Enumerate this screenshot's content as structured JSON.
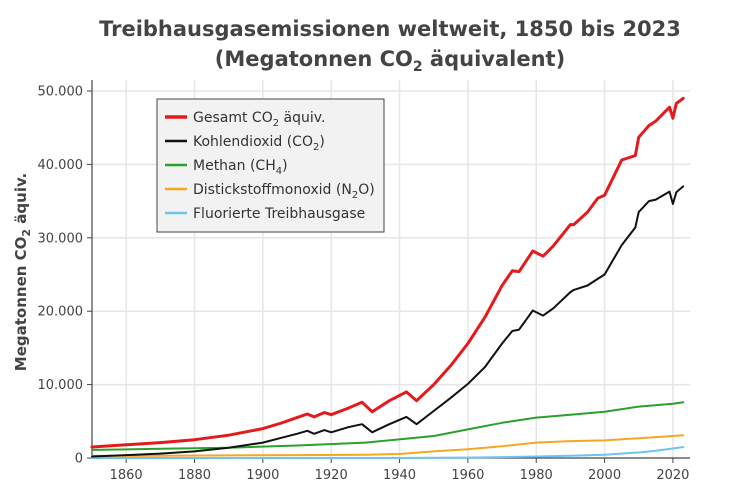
{
  "chart_data": {
    "type": "line",
    "title_line1": "Treibhausgasemissionen weltweit, 1850 bis 2023",
    "title_line2_main": "(Megatonnen CO",
    "title_line2_sub": "2",
    "title_line2_end": " äquivalent)",
    "ylabel_main": "Megatonnen CO",
    "ylabel_sub": "2",
    "ylabel_end": " äquiv.",
    "xlabel": "",
    "xlim": [
      1850,
      2025
    ],
    "ylim": [
      0,
      51500
    ],
    "x_ticks": [
      1860,
      1880,
      1900,
      1920,
      1940,
      1960,
      1980,
      2000,
      2020
    ],
    "y_ticks": [
      0,
      10000,
      20000,
      30000,
      40000,
      50000
    ],
    "y_tick_labels": [
      "0",
      "10.000",
      "20.000",
      "30.000",
      "40.000",
      "50.000"
    ],
    "grid": true,
    "legend_position": "top-left",
    "series": [
      {
        "name_main": "Gesamt CO",
        "name_sub": "2",
        "name_end": " äquiv.",
        "color": "#e41a1c",
        "width": 3,
        "x": [
          1850,
          1860,
          1870,
          1880,
          1890,
          1900,
          1905,
          1910,
          1913,
          1915,
          1918,
          1920,
          1925,
          1929,
          1932,
          1937,
          1942,
          1945,
          1950,
          1955,
          1960,
          1965,
          1970,
          1973,
          1975,
          1979,
          1982,
          1985,
          1990,
          1991,
          1995,
          1998,
          2000,
          2005,
          2009,
          2010,
          2013,
          2015,
          2019,
          2020,
          2021,
          2023
        ],
        "y": [
          1500,
          1800,
          2100,
          2500,
          3100,
          4000,
          4700,
          5500,
          6000,
          5600,
          6200,
          5900,
          6800,
          7600,
          6300,
          7800,
          9000,
          7800,
          10000,
          12600,
          15600,
          19200,
          23500,
          25500,
          25400,
          28200,
          27500,
          28900,
          31800,
          31800,
          33500,
          35400,
          35800,
          40600,
          41200,
          43700,
          45300,
          45900,
          47800,
          46300,
          48300,
          49000
        ]
      },
      {
        "name_main": "Kohlendioxid (CO",
        "name_sub": "2",
        "name_end": ")",
        "color": "#111111",
        "width": 2,
        "x": [
          1850,
          1860,
          1870,
          1880,
          1890,
          1900,
          1905,
          1910,
          1913,
          1915,
          1918,
          1920,
          1925,
          1929,
          1932,
          1937,
          1942,
          1945,
          1950,
          1955,
          1960,
          1965,
          1970,
          1973,
          1975,
          1979,
          1982,
          1985,
          1990,
          1991,
          1995,
          1998,
          2000,
          2005,
          2009,
          2010,
          2013,
          2015,
          2019,
          2020,
          2021,
          2023
        ],
        "y": [
          200,
          400,
          600,
          900,
          1400,
          2100,
          2700,
          3300,
          3700,
          3300,
          3800,
          3500,
          4200,
          4600,
          3500,
          4600,
          5600,
          4600,
          6400,
          8200,
          10100,
          12400,
          15600,
          17300,
          17500,
          20100,
          19400,
          20400,
          22600,
          22900,
          23500,
          24400,
          25000,
          29000,
          31400,
          33500,
          35000,
          35200,
          36300,
          34600,
          36200,
          37000
        ]
      },
      {
        "name_main": "Methan (CH",
        "name_sub": "4",
        "name_end": ")",
        "color": "#2ca02c",
        "width": 2,
        "x": [
          1850,
          1870,
          1890,
          1910,
          1930,
          1950,
          1960,
          1970,
          1980,
          1990,
          2000,
          2010,
          2020,
          2023
        ],
        "y": [
          1100,
          1250,
          1400,
          1700,
          2100,
          3000,
          3900,
          4800,
          5500,
          5900,
          6300,
          7000,
          7400,
          7600
        ]
      },
      {
        "name_main": "Distickstoffmonoxid (N",
        "name_sub": "2",
        "name_end": "O)",
        "color": "#f5a623",
        "width": 2,
        "x": [
          1850,
          1870,
          1890,
          1910,
          1930,
          1940,
          1950,
          1960,
          1970,
          1980,
          1990,
          2000,
          2010,
          2020,
          2023
        ],
        "y": [
          280,
          300,
          350,
          400,
          450,
          550,
          900,
          1200,
          1600,
          2100,
          2300,
          2400,
          2700,
          3000,
          3100
        ]
      },
      {
        "name_main": "Fluorierte Treibhausgase",
        "name_sub": "",
        "name_end": "",
        "color": "#6fc3ee",
        "width": 2,
        "x": [
          1850,
          1940,
          1950,
          1960,
          1970,
          1980,
          1990,
          2000,
          2010,
          2015,
          2020,
          2023
        ],
        "y": [
          0,
          0,
          30,
          60,
          120,
          200,
          300,
          450,
          750,
          1000,
          1300,
          1500
        ]
      }
    ]
  }
}
